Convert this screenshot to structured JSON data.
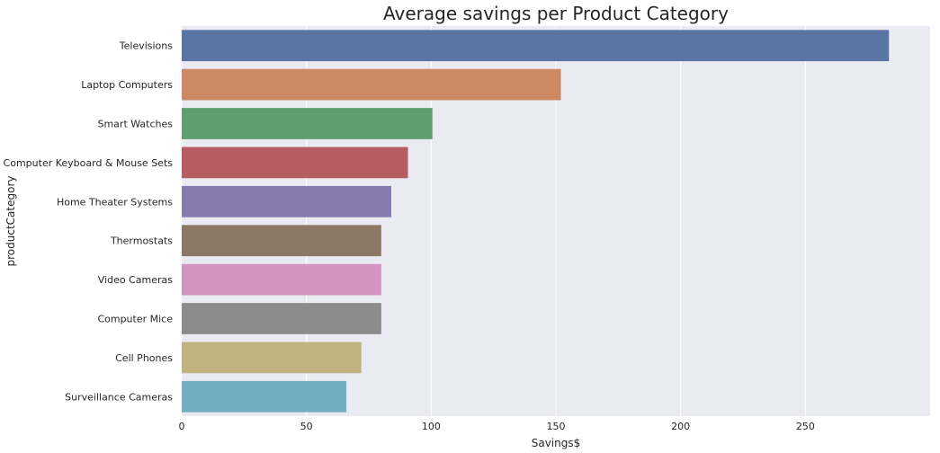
{
  "chart_data": {
    "type": "bar",
    "orientation": "horizontal",
    "title": "Average savings per Product Category",
    "xlabel": "Savings$",
    "ylabel": "productCategory",
    "xlim": [
      0,
      300
    ],
    "xticks": [
      0,
      50,
      100,
      150,
      200,
      250
    ],
    "grid": true,
    "categories": [
      "Televisions",
      "Laptop Computers",
      "Smart Watches",
      "Computer Keyboard & Mouse Sets",
      "Home Theater Systems",
      "Thermostats",
      "Video Cameras",
      "Computer Mice",
      "Cell Phones",
      "Surveillance Cameras"
    ],
    "values": [
      283.5,
      152,
      100.5,
      90.7,
      84,
      80,
      80,
      80,
      72,
      66
    ],
    "colors": [
      "#5975a4",
      "#cc8963",
      "#5f9e6e",
      "#b55d60",
      "#857aab",
      "#8d7866",
      "#d195c0",
      "#8c8c8c",
      "#c1b37f",
      "#71aec0"
    ],
    "background": "#eaeaf2",
    "gridcolor": "#ffffff"
  }
}
